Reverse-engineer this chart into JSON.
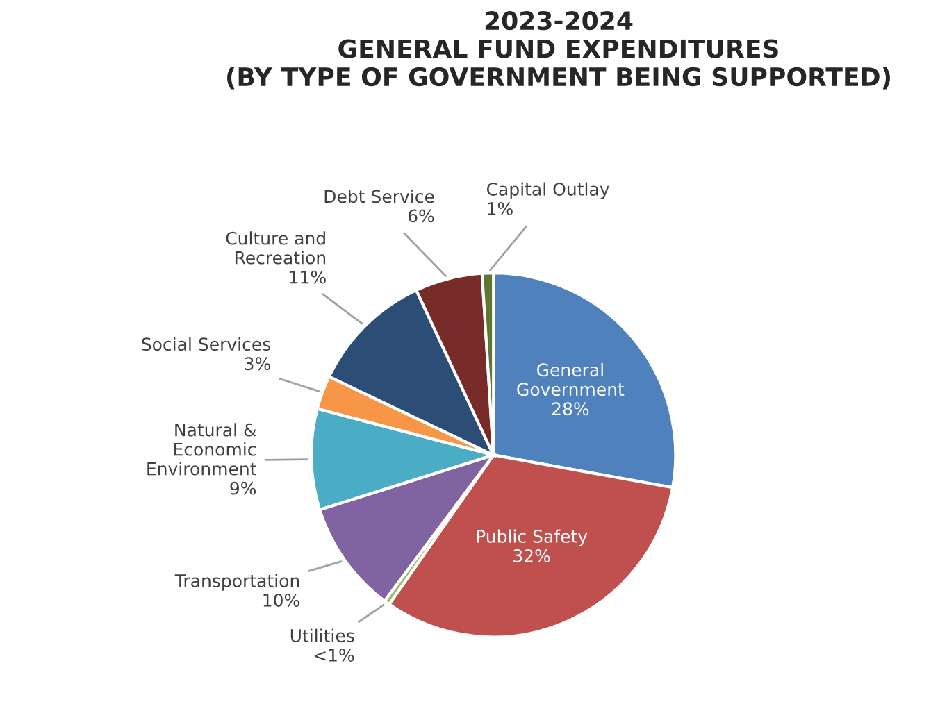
{
  "chart_data": {
    "type": "pie",
    "title": "2023-2024\nGENERAL FUND EXPENDITURES\n(BY TYPE OF GOVERNMENT BEING SUPPORTED)",
    "categories": [
      "General Government",
      "Public Safety",
      "Utilities",
      "Transportation",
      "Natural & Economic Environment",
      "Social Services",
      "Culture and Recreation",
      "Debt Service",
      "Capital Outlay"
    ],
    "values": [
      28,
      32,
      0.5,
      10,
      9,
      3,
      11,
      6,
      1
    ],
    "value_labels": [
      "28%",
      "32%",
      "<1%",
      "10%",
      "9%",
      "3%",
      "11%",
      "6%",
      "1%"
    ],
    "colors": [
      "#4f81bd",
      "#c0504d",
      "#9bbb59",
      "#8064a2",
      "#4bacc6",
      "#f79646",
      "#2c4d75",
      "#772c2a",
      "#5f7530"
    ],
    "legend": false
  }
}
